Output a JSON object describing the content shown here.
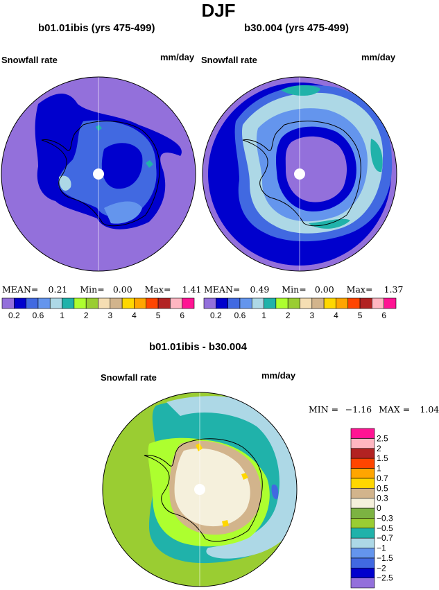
{
  "figure": {
    "season_title": "DJF"
  },
  "panel_a": {
    "case_title": "b01.01ibis (yrs 475-499)",
    "variable": "Snowfall rate",
    "units": "mm/day",
    "mean_label": "MEAN=",
    "mean": "0.21",
    "min_label": "Min=",
    "min": "0.00",
    "max_label": "Max=",
    "max": "1.41"
  },
  "panel_b": {
    "case_title": "b30.004 (yrs 475-499)",
    "variable": "Snowfall rate",
    "units": "mm/day",
    "mean_label": "MEAN=",
    "mean": "0.49",
    "min_label": "Min=",
    "min": "0.00",
    "max_label": "Max=",
    "max": "1.37"
  },
  "panel_diff": {
    "case_title": "b01.01ibis - b30.004",
    "variable": "Snowfall rate",
    "units": "mm/day",
    "min_label": "MIN =",
    "min": "−1.16",
    "max_label": "MAX =",
    "max": "1.04"
  },
  "colorbar_abs": {
    "colors": [
      "#9370db",
      "#0000cd",
      "#4169e1",
      "#6495ed",
      "#add8e6",
      "#20b2aa",
      "#adff2f",
      "#9acd32",
      "#f5deb3",
      "#d2b48c",
      "#ffd700",
      "#ffa500",
      "#ff4500",
      "#b22222",
      "#ffb6c1",
      "#ff1493"
    ],
    "labels": [
      "0.2",
      "0.6",
      "1",
      "2",
      "3",
      "4",
      "5",
      "6"
    ]
  },
  "colorbar_diff": {
    "colors": [
      "#9370db",
      "#0000cd",
      "#4169e1",
      "#6495ed",
      "#add8e6",
      "#20b2aa",
      "#9acd32",
      "#7cb342",
      "#f5f0dc",
      "#d2b48c",
      "#ffd700",
      "#ffa500",
      "#ff4500",
      "#b22222",
      "#ffb6c1",
      "#ff1493"
    ],
    "labels": [
      "−2.5",
      "−2",
      "−1.5",
      "−1",
      "−0.7",
      "−0.5",
      "−0.3",
      "0",
      "0.3",
      "0.5",
      "0.7",
      "1",
      "1.5",
      "2",
      "2.5"
    ]
  },
  "colors": {
    "ocean_low": "#9370db",
    "coastline": "#000000",
    "pole_marker": "#ffffff"
  }
}
